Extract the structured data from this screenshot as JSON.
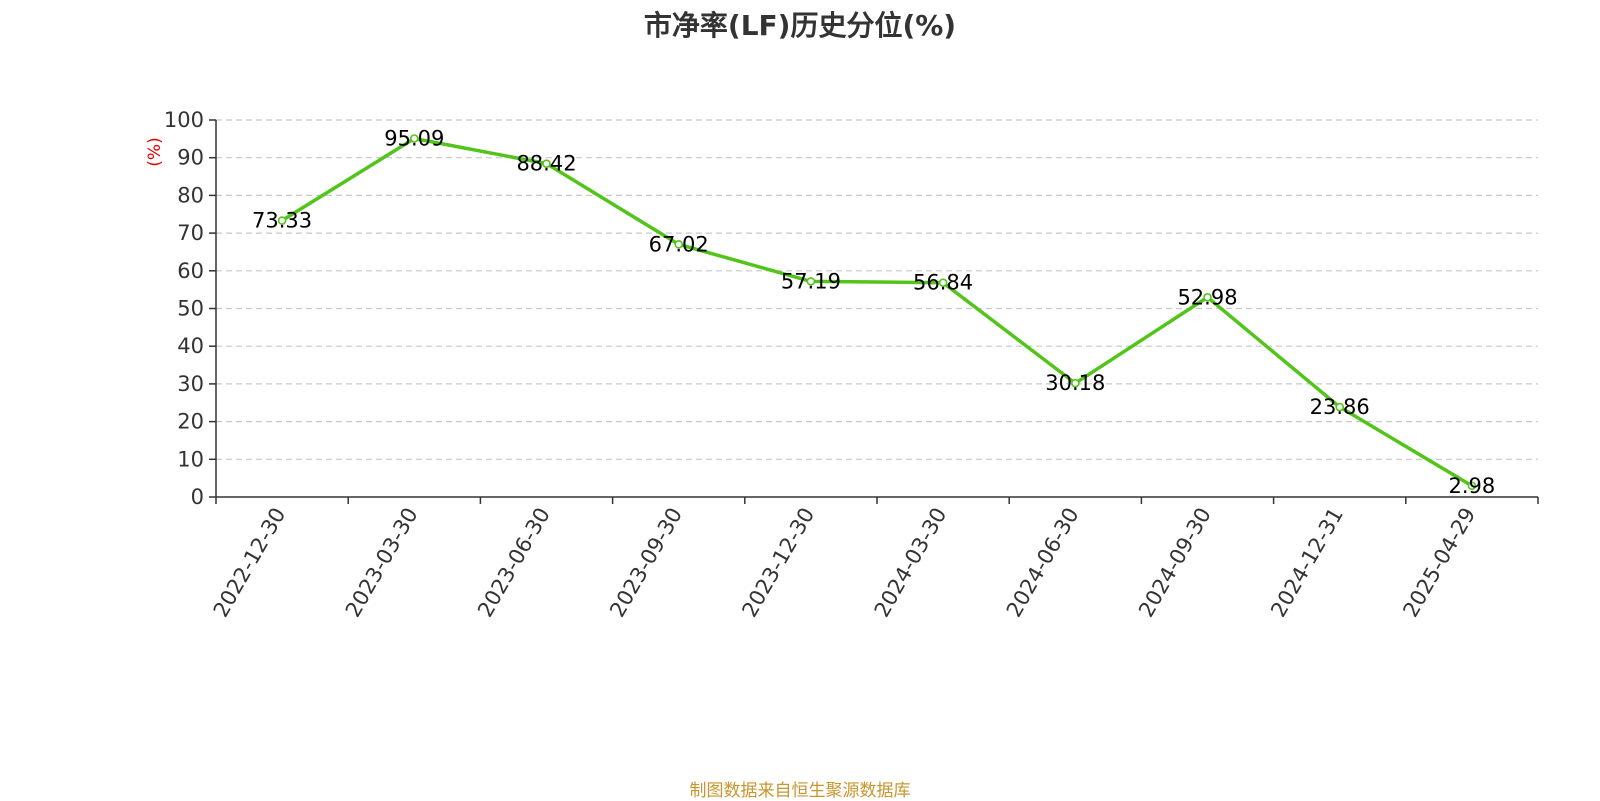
{
  "chart_data": {
    "type": "line",
    "title": "市净率(LF)历史分位(%)",
    "ylabel": "(%)",
    "xlabel": "",
    "ylim": [
      0,
      100
    ],
    "yticks": [
      0,
      10,
      20,
      30,
      40,
      50,
      60,
      70,
      80,
      90,
      100
    ],
    "categories": [
      "2022-12-30",
      "2023-03-30",
      "2023-06-30",
      "2023-09-30",
      "2023-12-30",
      "2024-03-30",
      "2024-06-30",
      "2024-09-30",
      "2024-12-31",
      "2025-04-29"
    ],
    "series": [
      {
        "values": [
          73.33,
          95.09,
          88.42,
          67.02,
          57.19,
          56.84,
          30.18,
          52.98,
          23.86,
          2.98
        ],
        "color": "#52c41a"
      }
    ],
    "data_labels": [
      "73.33",
      "95.09",
      "88.42",
      "67.02",
      "57.19",
      "56.84",
      "30.18",
      "52.98",
      "23.86",
      "2.98"
    ],
    "grid": "horizontal dashed",
    "legend": "none"
  },
  "source": "制图数据来自恒生聚源数据库"
}
